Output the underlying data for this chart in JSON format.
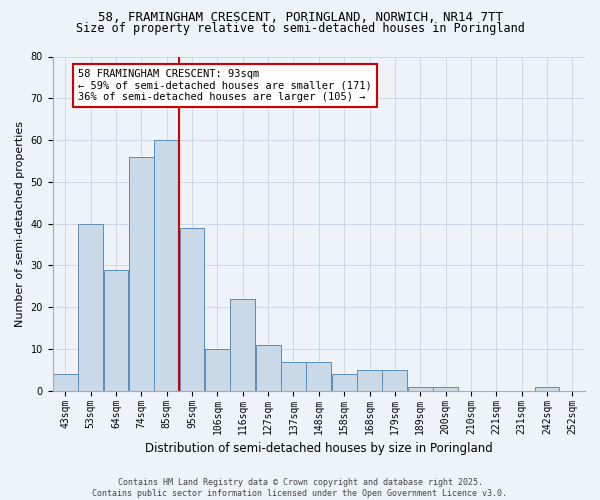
{
  "title1": "58, FRAMINGHAM CRESCENT, PORINGLAND, NORWICH, NR14 7TT",
  "title2": "Size of property relative to semi-detached houses in Poringland",
  "xlabel": "Distribution of semi-detached houses by size in Poringland",
  "ylabel": "Number of semi-detached properties",
  "bin_labels": [
    "43sqm",
    "53sqm",
    "64sqm",
    "74sqm",
    "85sqm",
    "95sqm",
    "106sqm",
    "116sqm",
    "127sqm",
    "137sqm",
    "148sqm",
    "158sqm",
    "168sqm",
    "179sqm",
    "189sqm",
    "200sqm",
    "210sqm",
    "221sqm",
    "231sqm",
    "242sqm",
    "252sqm"
  ],
  "bar_heights": [
    4,
    40,
    29,
    56,
    60,
    39,
    10,
    22,
    11,
    7,
    7,
    4,
    5,
    5,
    1,
    1,
    0,
    0,
    0,
    1,
    0
  ],
  "bar_color": "#c9d9e8",
  "bar_edge_color": "#5b8db8",
  "vline_x_idx": 5,
  "vline_color": "#cc0000",
  "annotation_text": "58 FRAMINGHAM CRESCENT: 93sqm\n← 59% of semi-detached houses are smaller (171)\n36% of semi-detached houses are larger (105) →",
  "annotation_box_color": "#ffffff",
  "annotation_box_edge": "#cc0000",
  "ylim": [
    0,
    80
  ],
  "yticks": [
    0,
    10,
    20,
    30,
    40,
    50,
    60,
    70,
    80
  ],
  "footer1": "Contains HM Land Registry data © Crown copyright and database right 2025.",
  "footer2": "Contains public sector information licensed under the Open Government Licence v3.0.",
  "bg_color": "#eef2f9",
  "title_fontsize": 9,
  "subtitle_fontsize": 8.5,
  "ylabel_fontsize": 8,
  "xlabel_fontsize": 8.5,
  "tick_fontsize": 7,
  "annot_fontsize": 7.5,
  "footer_fontsize": 6
}
